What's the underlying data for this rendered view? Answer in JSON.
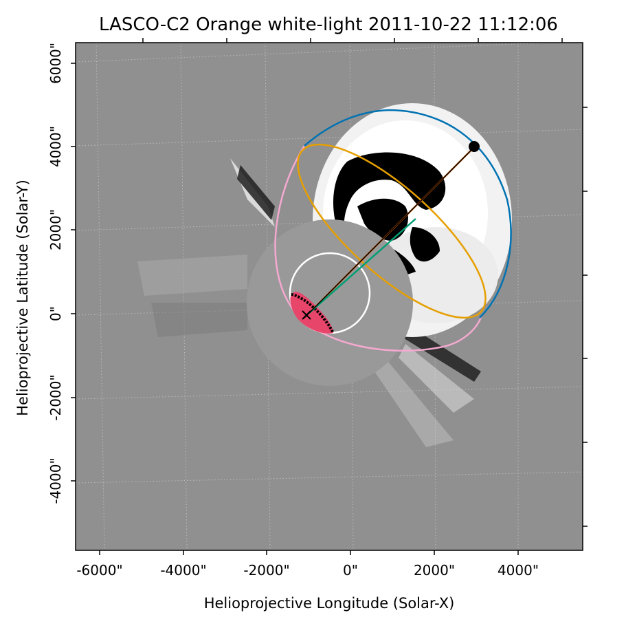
{
  "title": "LASCO-C2 Orange white-light 2011-10-22 11:12:06",
  "xlabel": "Helioprojective Longitude (Solar-X)",
  "ylabel": "Helioprojective Latitude (Solar-Y)",
  "x_ticks": [
    "-6000\"",
    "-4000\"",
    "-2000\"",
    "0\"",
    "2000\"",
    "4000\""
  ],
  "y_ticks": [
    "6000\"",
    "4000\"",
    "2000\"",
    "0\"",
    "-2000\"",
    "-4000\""
  ],
  "colors": {
    "background": "#919191",
    "occulter": "#999999",
    "bright_front": "#ffffff",
    "dark_core": "#000000",
    "limb_circle": "#ffffff",
    "outer_ellipse": "#0072b2",
    "inner_ellipse": "#e69f00",
    "pink_arc": "#f5a9d0",
    "orange_line": "#d55e00",
    "green_line": "#009e73",
    "center_line": "#000000",
    "footprint_fill": "#e8456b"
  }
}
